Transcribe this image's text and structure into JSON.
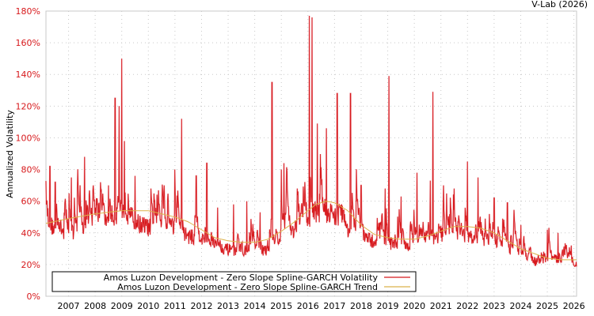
{
  "credit": "V-Lab (2026)",
  "colors": {
    "volatility": "#d7191c",
    "volatility_light": "#ec8a93",
    "trend": "#dcb24a",
    "grid": "#c8c8c8",
    "axis": "#c8c8c8",
    "ytick": "#d7191c"
  },
  "legend": {
    "items": [
      {
        "label": "Amos Luzon Development - Zero Slope Spline-GARCH Volatility",
        "color": "#d7191c"
      },
      {
        "label": "Amos Luzon Development - Zero Slope Spline-GARCH Trend",
        "color": "#dcb24a"
      }
    ]
  },
  "chart_data": {
    "type": "line",
    "title": "",
    "xlabel": "",
    "ylabel": "Annualized Volatility",
    "ylim": [
      0,
      180
    ],
    "xlim": [
      2006.15,
      2026.1
    ],
    "y_ticks": [
      "0%",
      "20%",
      "40%",
      "60%",
      "80%",
      "100%",
      "120%",
      "140%",
      "160%",
      "180%"
    ],
    "x_ticks": [
      "2007",
      "2008",
      "2009",
      "2010",
      "2011",
      "2012",
      "2013",
      "2014",
      "2015",
      "2016",
      "2017",
      "2018",
      "2019",
      "2020",
      "2021",
      "2022",
      "2023",
      "2024",
      "2025",
      "2026"
    ],
    "grid": true,
    "legend_position": "bottom-left inside",
    "series": [
      {
        "name": "Amos Luzon Development - Zero Slope Spline-GARCH Volatility",
        "note": "approximate baseline level (x=year, y=% annualized vol) plus read-off spikes",
        "baseline": [
          [
            2006.15,
            48
          ],
          [
            2006.5,
            45
          ],
          [
            2007.0,
            42
          ],
          [
            2007.5,
            40
          ],
          [
            2008.0,
            46
          ],
          [
            2008.5,
            47
          ],
          [
            2008.8,
            55
          ],
          [
            2009.0,
            58
          ],
          [
            2009.3,
            52
          ],
          [
            2009.7,
            48
          ],
          [
            2010.0,
            46
          ],
          [
            2010.5,
            45
          ],
          [
            2011.0,
            42
          ],
          [
            2011.5,
            40
          ],
          [
            2012.0,
            38
          ],
          [
            2012.5,
            34
          ],
          [
            2013.0,
            31
          ],
          [
            2013.5,
            30
          ],
          [
            2014.0,
            29
          ],
          [
            2014.5,
            30
          ],
          [
            2014.8,
            36
          ],
          [
            2015.0,
            40
          ],
          [
            2015.5,
            42
          ],
          [
            2016.0,
            46
          ],
          [
            2016.2,
            55
          ],
          [
            2016.6,
            56
          ],
          [
            2017.0,
            54
          ],
          [
            2017.5,
            45
          ],
          [
            2018.0,
            40
          ],
          [
            2018.5,
            36
          ],
          [
            2019.0,
            34
          ],
          [
            2019.5,
            33
          ],
          [
            2020.0,
            34
          ],
          [
            2020.5,
            38
          ],
          [
            2021.0,
            40
          ],
          [
            2021.5,
            40
          ],
          [
            2022.0,
            38
          ],
          [
            2022.5,
            38
          ],
          [
            2023.0,
            36
          ],
          [
            2023.5,
            32
          ],
          [
            2024.0,
            27
          ],
          [
            2024.5,
            23
          ],
          [
            2025.0,
            22
          ],
          [
            2025.5,
            26
          ],
          [
            2026.1,
            22
          ]
        ],
        "spikes": [
          [
            2006.3,
            82
          ],
          [
            2006.5,
            72
          ],
          [
            2007.1,
            75
          ],
          [
            2007.6,
            88
          ],
          [
            2008.2,
            72
          ],
          [
            2008.5,
            70
          ],
          [
            2008.75,
            125
          ],
          [
            2008.9,
            120
          ],
          [
            2009.0,
            150
          ],
          [
            2009.1,
            98
          ],
          [
            2009.5,
            76
          ],
          [
            2010.1,
            68
          ],
          [
            2010.6,
            70
          ],
          [
            2011.0,
            80
          ],
          [
            2011.25,
            112
          ],
          [
            2011.8,
            76
          ],
          [
            2012.2,
            84
          ],
          [
            2012.6,
            56
          ],
          [
            2013.2,
            58
          ],
          [
            2013.7,
            60
          ],
          [
            2014.2,
            53
          ],
          [
            2014.65,
            135
          ],
          [
            2015.0,
            80
          ],
          [
            2015.1,
            84
          ],
          [
            2015.6,
            68
          ],
          [
            2016.05,
            177
          ],
          [
            2016.15,
            176
          ],
          [
            2016.35,
            109
          ],
          [
            2016.7,
            106
          ],
          [
            2017.1,
            128
          ],
          [
            2017.6,
            128
          ],
          [
            2018.0,
            70
          ],
          [
            2018.9,
            68
          ],
          [
            2019.05,
            139
          ],
          [
            2019.5,
            63
          ],
          [
            2020.1,
            78
          ],
          [
            2020.6,
            73
          ],
          [
            2020.7,
            129
          ],
          [
            2021.1,
            70
          ],
          [
            2021.5,
            68
          ],
          [
            2022.0,
            85
          ],
          [
            2022.4,
            75
          ],
          [
            2023.0,
            62
          ],
          [
            2023.5,
            59
          ],
          [
            2024.0,
            45
          ],
          [
            2025.0,
            42
          ],
          [
            2025.4,
            40
          ],
          [
            2025.9,
            32
          ]
        ]
      },
      {
        "name": "Amos Luzon Development - Zero Slope Spline-GARCH Trend",
        "points": [
          [
            2006.15,
            46
          ],
          [
            2007.0,
            49
          ],
          [
            2008.0,
            52
          ],
          [
            2009.0,
            54
          ],
          [
            2010.0,
            54
          ],
          [
            2010.5,
            52
          ],
          [
            2011.0,
            50
          ],
          [
            2011.5,
            47
          ],
          [
            2012.0,
            42
          ],
          [
            2012.5,
            37
          ],
          [
            2013.0,
            35
          ],
          [
            2013.5,
            34
          ],
          [
            2014.0,
            34
          ],
          [
            2014.5,
            36
          ],
          [
            2015.0,
            41
          ],
          [
            2015.5,
            47
          ],
          [
            2016.0,
            54
          ],
          [
            2016.3,
            58
          ],
          [
            2016.7,
            60
          ],
          [
            2017.0,
            59
          ],
          [
            2017.5,
            54
          ],
          [
            2018.0,
            45
          ],
          [
            2018.5,
            39
          ],
          [
            2019.0,
            37
          ],
          [
            2019.5,
            36
          ],
          [
            2020.0,
            36
          ],
          [
            2020.5,
            38
          ],
          [
            2021.0,
            41
          ],
          [
            2021.5,
            44
          ],
          [
            2022.0,
            44
          ],
          [
            2022.5,
            43
          ],
          [
            2023.0,
            40
          ],
          [
            2023.5,
            35
          ],
          [
            2024.0,
            30
          ],
          [
            2024.5,
            27
          ],
          [
            2025.0,
            24
          ],
          [
            2025.5,
            23
          ],
          [
            2026.1,
            23
          ]
        ]
      }
    ]
  }
}
